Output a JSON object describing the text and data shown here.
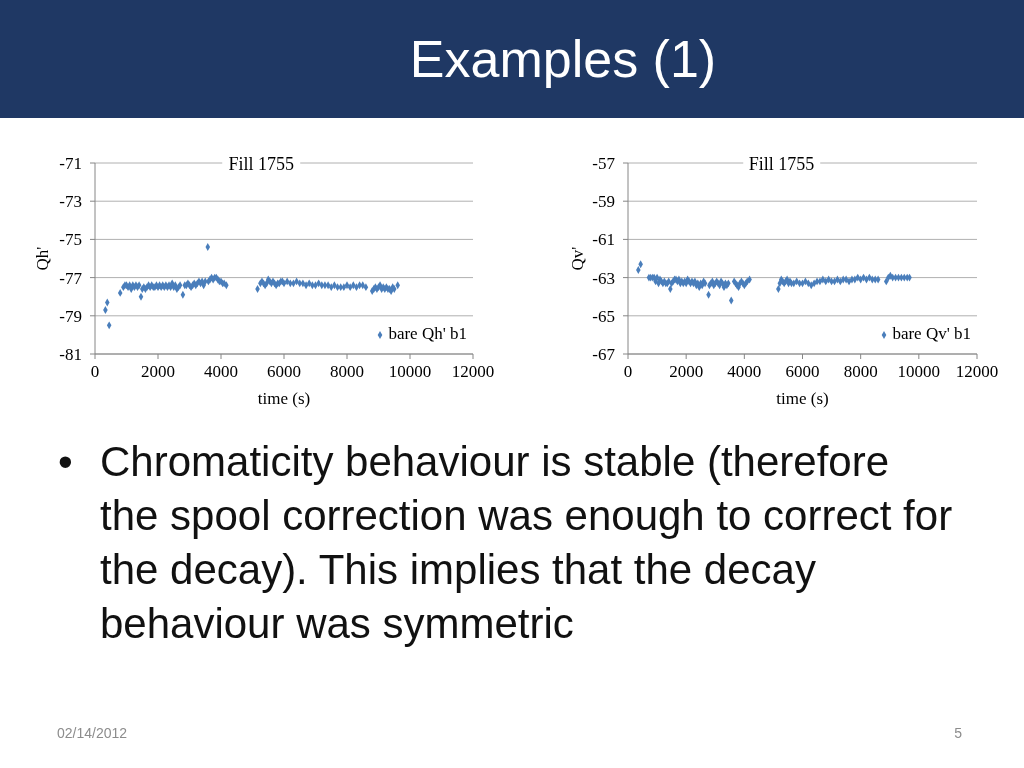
{
  "chart_data": [
    {
      "type": "other",
      "title": "Examples (1)"
    },
    {
      "type": "scatter",
      "title": "Fill 1755",
      "xlabel": "time (s)",
      "ylabel": "Qh'",
      "x": [
        330,
        390,
        450,
        800,
        900,
        950,
        1000,
        1050,
        1100,
        1150,
        1200,
        1250,
        1300,
        1350,
        1400,
        1460,
        1500,
        1550,
        1600,
        1650,
        1700,
        1750,
        1800,
        1850,
        1900,
        1950,
        2000,
        2050,
        2100,
        2150,
        2200,
        2250,
        2300,
        2350,
        2400,
        2450,
        2500,
        2550,
        2600,
        2650,
        2700,
        2790,
        2850,
        2900,
        2950,
        3000,
        3050,
        3100,
        3150,
        3200,
        3250,
        3300,
        3350,
        3400,
        3450,
        3500,
        3580,
        3600,
        3650,
        3700,
        3750,
        3800,
        3850,
        3900,
        3950,
        4000,
        4050,
        4100,
        4170,
        5160,
        5250,
        5300,
        5350,
        5400,
        5450,
        5500,
        5550,
        5600,
        5650,
        5700,
        5750,
        5800,
        5850,
        5900,
        5950,
        6000,
        6100,
        6200,
        6300,
        6400,
        6500,
        6600,
        6700,
        6800,
        6900,
        7000,
        7100,
        7200,
        7300,
        7400,
        7500,
        7600,
        7700,
        7800,
        7900,
        8000,
        8100,
        8200,
        8300,
        8400,
        8500,
        8600,
        8800,
        8850,
        8900,
        8950,
        9000,
        9050,
        9100,
        9150,
        9200,
        9250,
        9300,
        9350,
        9400,
        9450,
        9500,
        9610
      ],
      "series": [
        {
          "name": "bare Qh' b1",
          "color": "#4a7ebb",
          "values": [
            -78.7,
            -78.3,
            -79.5,
            -77.8,
            -77.5,
            -77.4,
            -77.4,
            -77.5,
            -77.4,
            -77.6,
            -77.4,
            -77.5,
            -77.4,
            -77.5,
            -77.4,
            -78.0,
            -77.6,
            -77.5,
            -77.6,
            -77.5,
            -77.4,
            -77.5,
            -77.4,
            -77.5,
            -77.5,
            -77.4,
            -77.5,
            -77.4,
            -77.5,
            -77.4,
            -77.5,
            -77.4,
            -77.5,
            -77.4,
            -77.5,
            -77.3,
            -77.5,
            -77.4,
            -77.6,
            -77.5,
            -77.4,
            -77.9,
            -77.4,
            -77.4,
            -77.3,
            -77.4,
            -77.5,
            -77.4,
            -77.3,
            -77.4,
            -77.3,
            -77.2,
            -77.3,
            -77.2,
            -77.4,
            -77.2,
            -75.4,
            -77.2,
            -77.1,
            -77.0,
            -77.1,
            -77.0,
            -77.0,
            -77.1,
            -77.2,
            -77.2,
            -77.3,
            -77.3,
            -77.4,
            -77.6,
            -77.3,
            -77.2,
            -77.3,
            -77.4,
            -77.3,
            -77.1,
            -77.2,
            -77.3,
            -77.2,
            -77.3,
            -77.4,
            -77.3,
            -77.3,
            -77.2,
            -77.2,
            -77.3,
            -77.2,
            -77.3,
            -77.3,
            -77.2,
            -77.3,
            -77.3,
            -77.4,
            -77.3,
            -77.4,
            -77.4,
            -77.3,
            -77.4,
            -77.4,
            -77.4,
            -77.5,
            -77.4,
            -77.5,
            -77.5,
            -77.5,
            -77.4,
            -77.5,
            -77.4,
            -77.5,
            -77.4,
            -77.4,
            -77.5,
            -77.7,
            -77.6,
            -77.5,
            -77.6,
            -77.5,
            -77.4,
            -77.6,
            -77.5,
            -77.6,
            -77.5,
            -77.6,
            -77.6,
            -77.7,
            -77.5,
            -77.6,
            -77.4
          ]
        }
      ],
      "xlim": [
        0,
        12000
      ],
      "xticks": [
        0,
        2000,
        4000,
        6000,
        8000,
        10000,
        12000
      ],
      "ylim": [
        -81,
        -71
      ],
      "yticks": [
        -81,
        -79,
        -77,
        -75,
        -73,
        -71
      ],
      "grid": "y",
      "legend": "bottom right",
      "marker": "diamond"
    },
    {
      "type": "scatter",
      "title": "Fill 1755",
      "xlabel": "time (s)",
      "ylabel": "Qv'",
      "x": [
        355,
        435,
        720,
        780,
        850,
        900,
        950,
        1000,
        1050,
        1100,
        1150,
        1200,
        1250,
        1300,
        1350,
        1400,
        1455,
        1500,
        1550,
        1600,
        1650,
        1700,
        1750,
        1800,
        1850,
        1900,
        1950,
        2000,
        2050,
        2100,
        2150,
        2200,
        2250,
        2300,
        2350,
        2400,
        2450,
        2500,
        2550,
        2600,
        2650,
        2770,
        2800,
        2850,
        2900,
        2950,
        3000,
        3050,
        3100,
        3150,
        3200,
        3250,
        3300,
        3350,
        3400,
        3450,
        3550,
        3650,
        3700,
        3750,
        3800,
        3850,
        3900,
        3950,
        4000,
        4050,
        4100,
        4180,
        5170,
        5220,
        5270,
        5320,
        5370,
        5420,
        5470,
        5520,
        5570,
        5620,
        5700,
        5800,
        5900,
        6000,
        6100,
        6200,
        6300,
        6400,
        6500,
        6600,
        6700,
        6800,
        6900,
        7000,
        7100,
        7200,
        7300,
        7400,
        7500,
        7600,
        7700,
        7800,
        7900,
        8000,
        8100,
        8200,
        8300,
        8400,
        8500,
        8600,
        8880,
        8950,
        9020,
        9100,
        9200,
        9300,
        9400,
        9500,
        9600,
        9680
      ],
      "series": [
        {
          "name": "bare Qv' b1",
          "color": "#4a7ebb",
          "values": [
            -62.6,
            -62.3,
            -63.0,
            -63.0,
            -63.0,
            -63.0,
            -63.2,
            -63.0,
            -63.3,
            -63.1,
            -63.2,
            -63.3,
            -63.2,
            -63.3,
            -63.3,
            -63.2,
            -63.6,
            -63.3,
            -63.2,
            -63.1,
            -63.1,
            -63.2,
            -63.1,
            -63.3,
            -63.2,
            -63.3,
            -63.2,
            -63.3,
            -63.1,
            -63.2,
            -63.3,
            -63.2,
            -63.3,
            -63.2,
            -63.4,
            -63.3,
            -63.5,
            -63.3,
            -63.4,
            -63.2,
            -63.3,
            -63.9,
            -63.4,
            -63.3,
            -63.2,
            -63.4,
            -63.3,
            -63.2,
            -63.3,
            -63.4,
            -63.2,
            -63.3,
            -63.5,
            -63.3,
            -63.4,
            -63.3,
            -64.2,
            -63.2,
            -63.3,
            -63.4,
            -63.5,
            -63.3,
            -63.2,
            -63.3,
            -63.4,
            -63.3,
            -63.2,
            -63.1,
            -63.6,
            -63.3,
            -63.1,
            -63.2,
            -63.3,
            -63.2,
            -63.1,
            -63.3,
            -63.2,
            -63.3,
            -63.3,
            -63.2,
            -63.3,
            -63.3,
            -63.2,
            -63.3,
            -63.4,
            -63.3,
            -63.2,
            -63.2,
            -63.1,
            -63.2,
            -63.1,
            -63.2,
            -63.2,
            -63.1,
            -63.2,
            -63.1,
            -63.1,
            -63.2,
            -63.1,
            -63.1,
            -63.0,
            -63.1,
            -63.0,
            -63.1,
            -63.0,
            -63.1,
            -63.1,
            -63.1,
            -63.2,
            -63.0,
            -62.9,
            -63.0,
            -63.0,
            -63.0,
            -63.0,
            -63.0,
            -63.0,
            -63.0
          ]
        }
      ],
      "xlim": [
        0,
        12000
      ],
      "xticks": [
        0,
        2000,
        4000,
        6000,
        8000,
        10000,
        12000
      ],
      "ylim": [
        -67,
        -57
      ],
      "yticks": [
        -67,
        -65,
        -63,
        -61,
        -59,
        -57
      ],
      "grid": "y",
      "legend": "bottom right",
      "marker": "diamond"
    },
    {
      "type": "other",
      "annotations": [
        "•",
        "Chromaticity behaviour is stable (therefore the spool correction was enough to correct for the decay). This implies that the decay behaviour was symmetric",
        "02/14/2012",
        "5"
      ]
    }
  ]
}
